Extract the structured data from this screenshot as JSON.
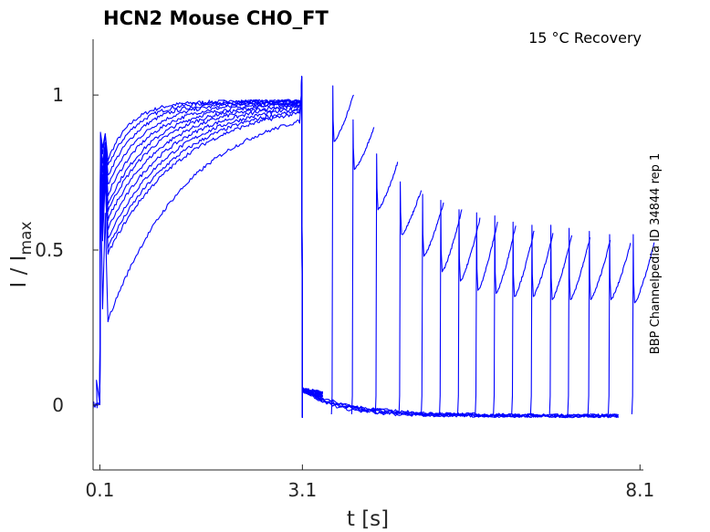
{
  "chart_data": {
    "type": "line",
    "title": "HCN2  Mouse  CHO_FT",
    "subtitle": "15 °C  Recovery",
    "side_note": "BBP Channelpedia ID 34844 rep 1",
    "xlabel": "t [s]",
    "ylabel_main": "I / I",
    "ylabel_sub": "max",
    "xlim": [
      0.0,
      8.15
    ],
    "ylim": [
      -0.18,
      1.18
    ],
    "xticks": [
      0.1,
      3.1,
      8.1
    ],
    "xtick_labels": [
      "0.1",
      "3.1",
      "8.1"
    ],
    "yticks": [
      0,
      0.5,
      1
    ],
    "ytick_labels": [
      "0",
      "0.5",
      "1"
    ],
    "grid": false,
    "color": "#0000ff",
    "activation_start_minima": [
      0.78,
      0.76,
      0.73,
      0.7,
      0.67,
      0.64,
      0.62,
      0.59,
      0.56,
      0.53,
      0.5,
      0.48,
      0.26
    ],
    "activation_plateau": 0.98,
    "recovery_pulses": [
      {
        "t": 3.55,
        "start": 0.85,
        "peak": 1.01
      },
      {
        "t": 3.85,
        "start": 0.76,
        "peak": 0.9
      },
      {
        "t": 4.2,
        "start": 0.63,
        "peak": 0.79
      },
      {
        "t": 4.55,
        "start": 0.55,
        "peak": 0.7
      },
      {
        "t": 4.88,
        "start": 0.48,
        "peak": 0.66
      },
      {
        "t": 5.15,
        "start": 0.43,
        "peak": 0.64
      },
      {
        "t": 5.42,
        "start": 0.4,
        "peak": 0.61
      },
      {
        "t": 5.68,
        "start": 0.37,
        "peak": 0.6
      },
      {
        "t": 5.95,
        "start": 0.36,
        "peak": 0.59
      },
      {
        "t": 6.22,
        "start": 0.35,
        "peak": 0.57
      },
      {
        "t": 6.5,
        "start": 0.35,
        "peak": 0.56
      },
      {
        "t": 6.78,
        "start": 0.34,
        "peak": 0.56
      },
      {
        "t": 7.05,
        "start": 0.34,
        "peak": 0.55
      },
      {
        "t": 7.35,
        "start": 0.34,
        "peak": 0.54
      },
      {
        "t": 7.65,
        "start": 0.34,
        "peak": 0.53
      },
      {
        "t": 8.0,
        "start": 0.33,
        "peak": 0.53
      }
    ]
  }
}
